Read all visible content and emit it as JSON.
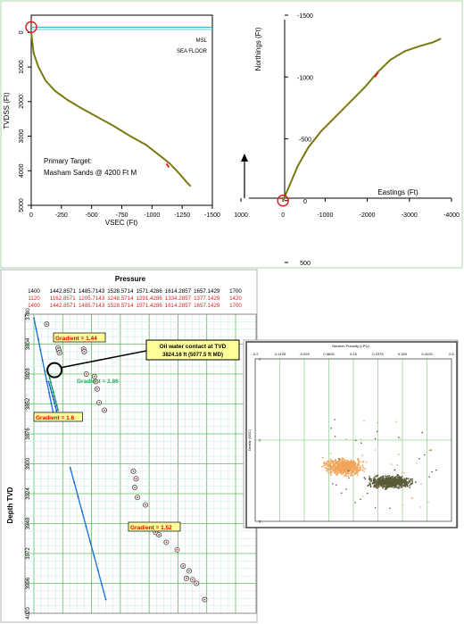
{
  "colors": {
    "well_path": "#7a7a10",
    "target_mark": "#e02020",
    "grid": "#58c058",
    "gradient_line": "#2277dd",
    "gradient_green": "#22aa55",
    "label_fill": "#ffff99",
    "label_text": "#dd0000",
    "scatter_a": "#f2a55a",
    "scatter_b": "#5a5a3a",
    "msl": "#3399cc",
    "sea_floor": "#66cccc",
    "pressure_row2": "#dd2222"
  },
  "chart_data": [
    {
      "type": "line",
      "name": "vertical-section",
      "xlabel": "VSEC (Ft)",
      "ylabel": "TVDSS (Ft)",
      "xlim": [
        0,
        -1500
      ],
      "ylim": [
        -500,
        5000
      ],
      "x_ticks": [
        "0",
        "-250",
        "-500",
        "-750",
        "-1000",
        "-1250",
        "-1500"
      ],
      "y_ticks": [
        "0",
        "1000",
        "2000",
        "3000",
        "4000",
        "5000"
      ],
      "msl_label": "MSL",
      "sea_floor_label": "SEA FLOOR",
      "msl_depth": 0,
      "sea_floor_depth": 15,
      "annotation_line1": "Primary Target:",
      "annotation_line2": "Masham Sands @ 4200 Ft M",
      "path_x": [
        0,
        -20,
        -60,
        -120,
        -200,
        -300,
        -420,
        -550,
        -680,
        -820,
        -950,
        -1060,
        -1150,
        -1230,
        -1280,
        -1320
      ],
      "path_y": [
        0,
        600,
        1000,
        1400,
        1700,
        1950,
        2200,
        2450,
        2700,
        3000,
        3250,
        3550,
        3800,
        4100,
        4300,
        4450
      ],
      "target_x": [
        -1120,
        -1140
      ],
      "target_y": [
        3800,
        3900
      ]
    },
    {
      "type": "line",
      "name": "plan-view",
      "xlabel": "Eastings (Ft)",
      "ylabel": "Northings (Ft)",
      "xlim": [
        1000,
        -4000
      ],
      "ylim": [
        500,
        -1500
      ],
      "x_ticks": [
        "1000",
        "0",
        "-1000",
        "-2000",
        "-3000",
        "-4000"
      ],
      "y_ticks": [
        "-1500",
        "-1000",
        "-500",
        "0",
        "500"
      ],
      "path_x": [
        0,
        -150,
        -350,
        -600,
        -900,
        -1250,
        -1600,
        -1950,
        -2250,
        -2550,
        -2900,
        -3250,
        -3550,
        -3750
      ],
      "path_y": [
        0,
        -120,
        -280,
        -430,
        -560,
        -680,
        -800,
        -920,
        -1040,
        -1140,
        -1210,
        -1250,
        -1280,
        -1310
      ],
      "target_x": [
        -2180,
        -2260
      ],
      "target_y": [
        -1000,
        -1040
      ]
    },
    {
      "type": "scatter",
      "name": "pressure-depth",
      "title": "Pressure",
      "ylabel": "Depth TVD",
      "scale_row1": [
        "1400",
        "1442.8571",
        "1485.7143",
        "1528.5714",
        "1571.4286",
        "1614.2857",
        "1657.1429",
        "1700"
      ],
      "scale_row2": [
        "1120",
        "1162.8571",
        "1205.7143",
        "1248.5714",
        "1291.4286",
        "1334.2857",
        "1377.1429",
        "1420"
      ],
      "scale_row3": [
        "1400",
        "1442.8571",
        "1485.7143",
        "1528.5714",
        "1571.4286",
        "1614.2857",
        "1657.1429",
        "1700"
      ],
      "xlim": [
        1400,
        1700
      ],
      "ylim": [
        3780,
        4020
      ],
      "y_ticks": [
        "3780",
        "3804",
        "3828",
        "3852",
        "3876",
        "3900",
        "3924",
        "3948",
        "3972",
        "3996",
        "4020"
      ],
      "points": [
        {
          "p": 1419,
          "d": 3788
        },
        {
          "p": 1436,
          "d": 3807
        },
        {
          "p": 1437,
          "d": 3809
        },
        {
          "p": 1438,
          "d": 3811
        },
        {
          "p": 1474,
          "d": 3808
        },
        {
          "p": 1475,
          "d": 3810
        },
        {
          "p": 1478,
          "d": 3828
        },
        {
          "p": 1490,
          "d": 3830
        },
        {
          "p": 1492,
          "d": 3834
        },
        {
          "p": 1494,
          "d": 3840
        },
        {
          "p": 1497,
          "d": 3851
        },
        {
          "p": 1505,
          "d": 3857
        },
        {
          "p": 1548,
          "d": 3906
        },
        {
          "p": 1552,
          "d": 3912
        },
        {
          "p": 1550,
          "d": 3919
        },
        {
          "p": 1554,
          "d": 3927
        },
        {
          "p": 1566,
          "d": 3933
        },
        {
          "p": 1577,
          "d": 3952
        },
        {
          "p": 1581,
          "d": 3955
        },
        {
          "p": 1586,
          "d": 3957
        },
        {
          "p": 1597,
          "d": 3963
        },
        {
          "p": 1613,
          "d": 3969
        },
        {
          "p": 1622,
          "d": 3982
        },
        {
          "p": 1631,
          "d": 3986
        },
        {
          "p": 1627,
          "d": 3992
        },
        {
          "p": 1636,
          "d": 3993
        },
        {
          "p": 1642,
          "d": 3996
        },
        {
          "p": 1654,
          "d": 4009
        }
      ],
      "gradients": [
        {
          "label": "Gradient = 1.44",
          "p": [
            1400,
            1429
          ],
          "d": [
            3783,
            3860
          ],
          "color": "gradient_line"
        },
        {
          "label": "Gradient = 2.86",
          "p": [
            1420,
            1436
          ],
          "d": [
            3824,
            3857
          ],
          "color": "gradient_green"
        },
        {
          "label": "Gradient = 1.6",
          "p": [
            1422,
            1435
          ],
          "d": [
            3834,
            3860
          ],
          "color": "gradient_line"
        },
        {
          "label": "Gradient = 1.52",
          "p": [
            1454,
            1507
          ],
          "d": [
            3903,
            4009
          ],
          "color": "gradient_line"
        }
      ],
      "contact_line1": "Oil water contact at TVD",
      "contact_line2": "3824.16 ft  (5077.5 ft MD)",
      "contact_depth": 3824.16,
      "contact_pressure": 1424
    },
    {
      "type": "scatter",
      "name": "density-neutron",
      "title": "Neutron Porosity (LPU)",
      "ylabel": "Density (G/CC)",
      "x_ticks": [
        "-0.2",
        "-0.1125",
        "-0.025",
        "0.0625",
        "0.15",
        "0.2375",
        "0.325",
        "0.4125",
        "0.5"
      ],
      "xlim": [
        -0.2,
        0.5
      ],
      "ylim": [
        1,
        3
      ],
      "y_ticks": [
        "1",
        "2",
        "3"
      ]
    }
  ]
}
